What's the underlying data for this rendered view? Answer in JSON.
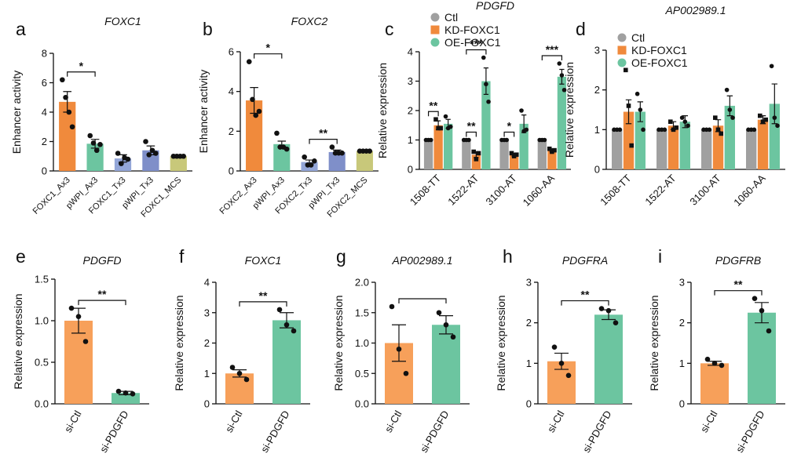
{
  "chart_data": [
    {
      "type": "bar",
      "panel": "a",
      "title": "FOXC1",
      "ylabel": "Enhancer activity",
      "categories": [
        "FOXC1_Ax3",
        "pWPI_Ax3",
        "FOXC1_Tx3",
        "pWPI_Tx3",
        "FOXC1_MCS"
      ],
      "values": [
        4.7,
        1.85,
        0.85,
        1.4,
        1.0
      ],
      "errors": [
        0.7,
        0.3,
        0.25,
        0.3,
        0.0
      ],
      "points": [
        [
          6.2,
          5.0,
          4.0,
          3.0
        ],
        [
          2.4,
          1.9,
          1.4,
          1.8
        ],
        [
          1.2,
          0.5,
          0.9,
          0.8
        ],
        [
          2.0,
          1.1,
          1.4,
          1.2
        ],
        [
          1.0,
          1.0,
          1.0,
          1.0
        ]
      ],
      "colors": [
        "#f08a3c",
        "#6cc5a0",
        "#93a6d8",
        "#7f8fc9",
        "#c8c87a"
      ],
      "ylim": [
        0,
        8
      ],
      "yticks": [
        0,
        2,
        4,
        6,
        8
      ],
      "annotations": [
        {
          "label": "*",
          "between": [
            0,
            1
          ]
        }
      ]
    },
    {
      "type": "bar",
      "panel": "b",
      "title": "FOXC2",
      "ylabel": "Enhancer activity",
      "categories": [
        "FOXC2_Ax3",
        "pWPI_Ax3",
        "FOXC2_Tx3",
        "pWPI_Tx3",
        "FOXC2_MCS"
      ],
      "values": [
        3.55,
        1.35,
        0.45,
        0.95,
        1.0
      ],
      "errors": [
        0.65,
        0.15,
        0.1,
        0.1,
        0.0
      ],
      "points": [
        [
          5.5,
          3.6,
          2.8,
          3.0
        ],
        [
          1.9,
          1.2,
          1.2,
          1.1
        ],
        [
          0.7,
          0.3,
          0.3,
          0.5
        ],
        [
          1.2,
          0.9,
          0.9,
          0.9
        ],
        [
          1.0,
          1.0,
          1.0,
          1.0
        ]
      ],
      "colors": [
        "#f08a3c",
        "#6cc5a0",
        "#93a6d8",
        "#7f8fc9",
        "#c8c87a"
      ],
      "ylim": [
        0,
        6
      ],
      "yticks": [
        0,
        2,
        4,
        6
      ],
      "annotations": [
        {
          "label": "*",
          "between": [
            0,
            1
          ]
        },
        {
          "label": "**",
          "between": [
            2,
            3
          ]
        }
      ]
    },
    {
      "type": "grouped_bar",
      "panel": "c",
      "title": "PDGFD",
      "ylabel": "Relative expression",
      "legend": "top",
      "categories": [
        "1508-TT",
        "1522-AT",
        "3100-AT",
        "1060-AA"
      ],
      "series": [
        {
          "name": "Ctl",
          "color": "#a0a0a0",
          "marker": "circle",
          "values": [
            1,
            1,
            1,
            1
          ],
          "errors": [
            0,
            0,
            0,
            0
          ],
          "points": [
            [
              1,
              1,
              1
            ],
            [
              1,
              1,
              1
            ],
            [
              1,
              1,
              1
            ],
            [
              1,
              1,
              1
            ]
          ]
        },
        {
          "name": "KD-FOXC1",
          "color": "#f08a3c",
          "marker": "square",
          "values": [
            1.5,
            0.5,
            0.5,
            0.65
          ],
          "errors": [
            0.15,
            0.1,
            0.05,
            0.05
          ],
          "points": [
            [
              1.7,
              1.4,
              1.4
            ],
            [
              0.6,
              0.35,
              0.55
            ],
            [
              0.55,
              0.45,
              0.5
            ],
            [
              0.7,
              0.6,
              0.65
            ]
          ]
        },
        {
          "name": "OE-FOXC1",
          "color": "#6cc5a0",
          "marker": "circle",
          "values": [
            1.55,
            3.0,
            1.55,
            3.15
          ],
          "errors": [
            0.15,
            0.45,
            0.3,
            0.25
          ],
          "points": [
            [
              1.8,
              1.4,
              1.45
            ],
            [
              3.8,
              2.9,
              2.3
            ],
            [
              2.0,
              1.3,
              1.35
            ],
            [
              3.6,
              3.2,
              2.7
            ]
          ]
        }
      ],
      "ylim": [
        0,
        4
      ],
      "yticks": [
        0,
        1,
        2,
        3,
        4
      ],
      "annotations": [
        {
          "label": "**",
          "group": 0,
          "between": [
            0,
            1
          ]
        },
        {
          "label": "***",
          "group": 1,
          "between": [
            0,
            2
          ]
        },
        {
          "label": "**",
          "group": 1,
          "between": [
            0,
            1
          ]
        },
        {
          "label": "*",
          "group": 2,
          "between": [
            0,
            1
          ]
        },
        {
          "label": "***",
          "group": 3,
          "between": [
            0,
            2
          ]
        }
      ]
    },
    {
      "type": "grouped_bar",
      "panel": "d",
      "title": "AP002989.1",
      "ylabel": "Relative expression",
      "legend": "top-left",
      "categories": [
        "1508-TT",
        "1522-AT",
        "3100-AT",
        "1060-AA"
      ],
      "series": [
        {
          "name": "Ctl",
          "color": "#a0a0a0",
          "marker": "circle",
          "values": [
            1,
            1,
            1,
            1
          ],
          "errors": [
            0,
            0,
            0,
            0
          ],
          "points": [
            [
              1,
              1,
              1
            ],
            [
              1,
              1,
              1
            ],
            [
              1,
              1,
              1
            ],
            [
              1,
              1,
              1
            ]
          ]
        },
        {
          "name": "KD-FOXC1",
          "color": "#f08a3c",
          "marker": "square",
          "values": [
            1.45,
            1.1,
            1.1,
            1.25
          ],
          "errors": [
            0.3,
            0.1,
            0.15,
            0.1
          ],
          "points": [
            [
              2.5,
              1.6,
              0.6
            ],
            [
              1.2,
              1.0,
              1.05
            ],
            [
              1.3,
              1.0,
              0.9
            ],
            [
              1.35,
              1.2,
              1.25
            ]
          ]
        },
        {
          "name": "OE-FOXC1",
          "color": "#6cc5a0",
          "marker": "circle",
          "values": [
            1.45,
            1.2,
            1.6,
            1.65
          ],
          "errors": [
            0.25,
            0.15,
            0.25,
            0.5
          ],
          "points": [
            [
              1.9,
              1.5,
              1.0
            ],
            [
              1.3,
              1.2,
              1.1
            ],
            [
              2.0,
              1.5,
              1.3
            ],
            [
              2.6,
              1.3,
              1.1
            ]
          ]
        }
      ],
      "ylim": [
        0,
        3
      ],
      "yticks": [
        0,
        1,
        2,
        3
      ]
    },
    {
      "type": "bar",
      "panel": "e",
      "title": "PDGFD",
      "ylabel": "Relative expression",
      "categories": [
        "si-Ctl",
        "si-PDGFD"
      ],
      "values": [
        1.0,
        0.13
      ],
      "errors": [
        0.15,
        0.02
      ],
      "points": [
        [
          1.15,
          1.05,
          0.75
        ],
        [
          0.15,
          0.13,
          0.12
        ]
      ],
      "colors": [
        "#f7a05a",
        "#6cc5a0"
      ],
      "ylim": [
        0,
        1.5
      ],
      "yticks": [
        {
          "value": 0,
          "label": "0.0"
        },
        0.5,
        {
          "value": 1,
          "label": "1.0"
        },
        1.5
      ],
      "annotations": [
        {
          "label": "**",
          "between": [
            0,
            1
          ]
        }
      ]
    },
    {
      "type": "bar",
      "panel": "f",
      "title": "FOXC1",
      "ylabel": "Relative expression",
      "categories": [
        "si-Ctl",
        "si-PDGFD"
      ],
      "values": [
        1.0,
        2.75
      ],
      "errors": [
        0.12,
        0.25
      ],
      "points": [
        [
          1.2,
          1.0,
          0.8
        ],
        [
          3.1,
          2.6,
          2.4
        ]
      ],
      "colors": [
        "#f7a05a",
        "#6cc5a0"
      ],
      "ylim": [
        0,
        4
      ],
      "yticks": [
        0,
        1,
        2,
        3,
        4
      ],
      "annotations": [
        {
          "label": "**",
          "between": [
            0,
            1
          ]
        }
      ]
    },
    {
      "type": "bar",
      "panel": "g",
      "title": "AP002989.1",
      "ylabel": "Relative expression",
      "categories": [
        "si-Ctl",
        "si-PDGFD"
      ],
      "values": [
        1.0,
        1.3
      ],
      "errors": [
        0.3,
        0.15
      ],
      "points": [
        [
          1.6,
          0.9,
          0.5
        ],
        [
          1.5,
          1.3,
          1.1
        ]
      ],
      "colors": [
        "#f7a05a",
        "#6cc5a0"
      ],
      "ylim": [
        0,
        2
      ],
      "yticks": [
        {
          "value": 0,
          "label": "0.0"
        },
        0.5,
        {
          "value": 1,
          "label": "1.0"
        },
        1.5,
        {
          "value": 2,
          "label": "2.0"
        }
      ],
      "annotations": [
        {
          "between": [
            0,
            1
          ]
        }
      ]
    },
    {
      "type": "bar",
      "panel": "h",
      "title": "PDGFRA",
      "ylabel": "Relative expression",
      "categories": [
        "si-Ctl",
        "si-PDGFD"
      ],
      "values": [
        1.05,
        2.2
      ],
      "errors": [
        0.2,
        0.12
      ],
      "points": [
        [
          1.4,
          1.0,
          0.7
        ],
        [
          2.35,
          2.3,
          2.0
        ]
      ],
      "colors": [
        "#f7a05a",
        "#6cc5a0"
      ],
      "ylim": [
        0,
        3
      ],
      "yticks": [
        0,
        1,
        2,
        3
      ],
      "annotations": [
        {
          "label": "**",
          "between": [
            0,
            1
          ]
        }
      ]
    },
    {
      "type": "bar",
      "panel": "i",
      "title": "PDGFRB",
      "ylabel": "Relative expression",
      "categories": [
        "si-Ctl",
        "si-PDGFD"
      ],
      "values": [
        1.0,
        2.25
      ],
      "errors": [
        0.05,
        0.25
      ],
      "points": [
        [
          1.1,
          1.0,
          0.95
        ],
        [
          2.6,
          2.3,
          1.8
        ]
      ],
      "colors": [
        "#f7a05a",
        "#6cc5a0"
      ],
      "ylim": [
        0,
        3
      ],
      "yticks": [
        0,
        1,
        2,
        3
      ],
      "annotations": [
        {
          "label": "**",
          "between": [
            0,
            1
          ]
        }
      ]
    }
  ]
}
